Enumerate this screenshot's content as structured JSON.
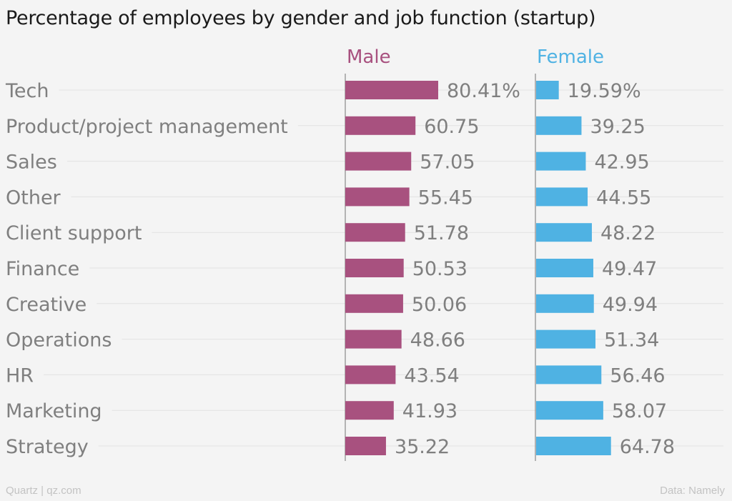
{
  "title": "Percentage of employees by gender and job function (startup)",
  "footer": {
    "source_left": "Quartz | qz.com",
    "source_right": "Data: Namely"
  },
  "colors": {
    "male": "#a8517f",
    "female": "#4fb2e3",
    "label": "#7f7f7f",
    "grid": "#e2e2e2",
    "axis": "#888888"
  },
  "chart_data": {
    "type": "bar",
    "title": "Percentage of employees by gender and job function (startup)",
    "categories": [
      "Tech",
      "Product/project management",
      "Sales",
      "Other",
      "Client support",
      "Finance",
      "Creative",
      "Operations",
      "HR",
      "Marketing",
      "Strategy"
    ],
    "series": [
      {
        "name": "Male",
        "values": [
          80.41,
          60.75,
          57.05,
          55.45,
          51.78,
          50.53,
          50.06,
          48.66,
          43.54,
          41.93,
          35.22
        ],
        "labels": [
          "80.41%",
          "60.75",
          "57.05",
          "55.45",
          "51.78",
          "50.53",
          "50.06",
          "48.66",
          "43.54",
          "41.93",
          "35.22"
        ]
      },
      {
        "name": "Female",
        "values": [
          19.59,
          39.25,
          42.95,
          44.55,
          48.22,
          49.47,
          49.94,
          51.34,
          56.46,
          58.07,
          64.78
        ],
        "labels": [
          "19.59%",
          "39.25",
          "42.95",
          "44.55",
          "48.22",
          "49.47",
          "49.94",
          "51.34",
          "56.46",
          "58.07",
          "64.78"
        ]
      }
    ],
    "xlim": [
      0,
      100
    ],
    "grid": true,
    "orientation": "horizontal",
    "layout": "small-multiples"
  }
}
